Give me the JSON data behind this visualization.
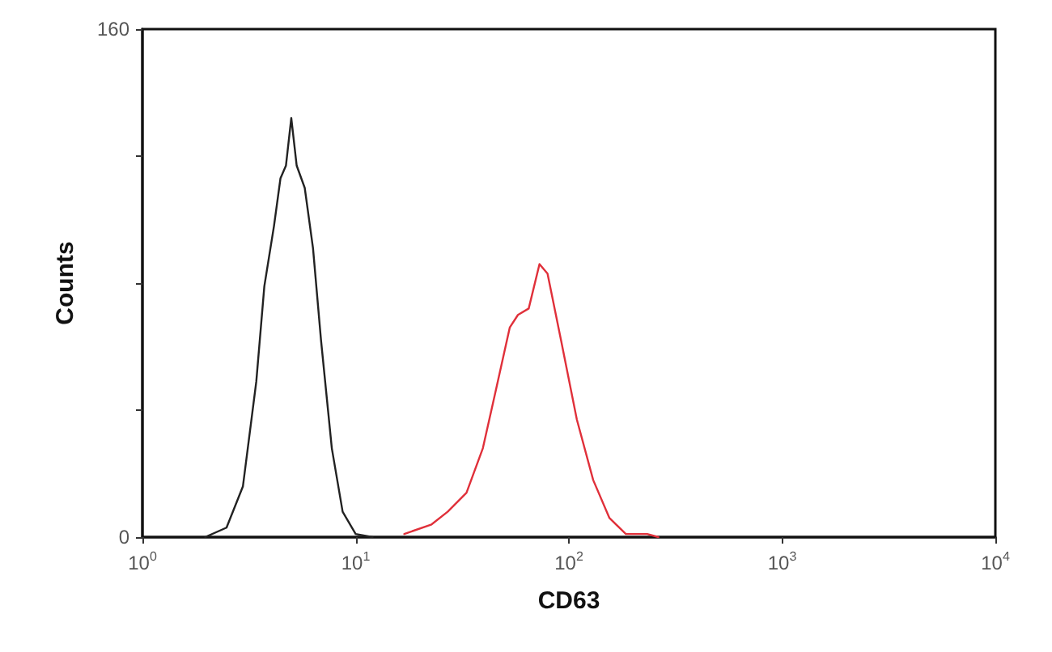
{
  "chart_data": {
    "type": "line",
    "xlabel": "CD63",
    "ylabel": "Counts",
    "log": "x",
    "xlim": [
      1,
      10000
    ],
    "xticks": [
      {
        "value": 1,
        "label": "10$^{0}$"
      },
      {
        "value": 10,
        "label": "10$^{1}$"
      },
      {
        "value": 100,
        "label": "10$^{2}$"
      },
      {
        "value": 1000,
        "label": "10$^{3}$"
      },
      {
        "value": 10000,
        "label": "10$^{4}$"
      }
    ],
    "ylim": [
      0,
      160
    ],
    "yticks": [
      0,
      {
        "value": 40,
        "label": null
      },
      {
        "value": 80,
        "label": null
      },
      {
        "value": 120,
        "label": null
      },
      160
    ],
    "grid": false,
    "marker": "none",
    "line_style": "solid",
    "series": [
      {
        "color": "#222222",
        "x": [
          1.97,
          2.48,
          2.96,
          3.42,
          3.73,
          4.14,
          4.44,
          4.71,
          4.99,
          5.29,
          5.77,
          6.31,
          6.88,
          7.73,
          8.69,
          10.0,
          12
        ],
        "values": [
          0,
          3,
          16,
          49,
          79,
          98,
          113,
          117,
          132,
          117,
          110,
          91,
          62,
          28,
          8,
          1,
          0
        ]
      },
      {
        "color": "#e0303a",
        "x": [
          16.9,
          22.7,
          27,
          33.1,
          39.5,
          45.7,
          52.8,
          57.7,
          64.8,
          72.8,
          79.4,
          91.9,
          109,
          130,
          155,
          185,
          233,
          263
        ],
        "values": [
          1,
          4,
          8,
          14,
          28,
          47,
          66,
          70,
          72,
          86,
          83,
          62,
          37,
          18,
          6,
          1,
          1,
          0
        ]
      }
    ]
  }
}
